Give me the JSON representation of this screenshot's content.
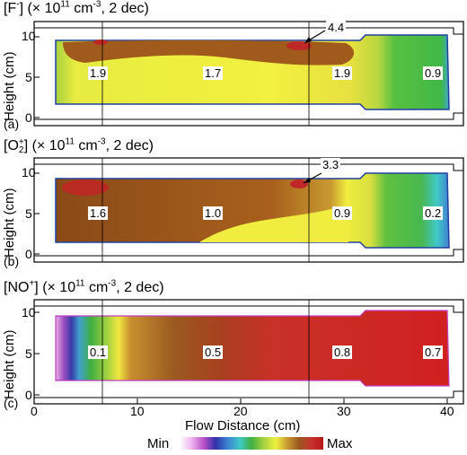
{
  "panels": [
    {
      "id": "a",
      "title": {
        "pre": "[F",
        "sup": "-",
        "sub": "",
        "post": "] (× 10",
        "exp": "11",
        "unit": " cm",
        "unitexp": "-3",
        "tail": ", 2 dec)"
      },
      "panel_label": "(a)",
      "ylabel": "Height (cm)",
      "yticks": [
        "0",
        "5",
        "10"
      ],
      "max_value": "4.4",
      "values": [
        "1.9",
        "1.7",
        "1.9",
        "0.9"
      ]
    },
    {
      "id": "b",
      "title": {
        "pre": "[O",
        "sup": "+",
        "sub": "2",
        "post": "] (× 10",
        "exp": "11",
        "unit": " cm",
        "unitexp": "-3",
        "tail": ", 2 dec)"
      },
      "panel_label": "(b)",
      "ylabel": "Height (cm)",
      "yticks": [
        "0",
        "5",
        "10"
      ],
      "max_value": "3.3",
      "values": [
        "1.6",
        "1.0",
        "0.9",
        "0.2"
      ]
    },
    {
      "id": "c",
      "title": {
        "pre": "[NO",
        "sup": "+",
        "sub": "",
        "post": "] (× 10",
        "exp": "11",
        "unit": " cm",
        "unitexp": "-3",
        "tail": ", 2 dec)"
      },
      "panel_label": "(c)",
      "ylabel": "Height (cm)",
      "yticks": [
        "0",
        "5",
        "10"
      ],
      "max_value": "",
      "values": [
        "0.1",
        "0.5",
        "0.8",
        "0.7"
      ]
    }
  ],
  "xaxis": {
    "label": "Flow Distance (cm)",
    "ticks": [
      "0",
      "10",
      "20",
      "30",
      "40"
    ]
  },
  "colorbar": {
    "min_label": "Min",
    "max_label": "Max",
    "colors": [
      "#ffffff",
      "#f0b8f0",
      "#b84fc8",
      "#3030a8",
      "#3a7fd0",
      "#40c8c8",
      "#40b040",
      "#9ed040",
      "#f0f040",
      "#c89a30",
      "#9a5a20",
      "#c83030",
      "#b81818"
    ]
  }
}
